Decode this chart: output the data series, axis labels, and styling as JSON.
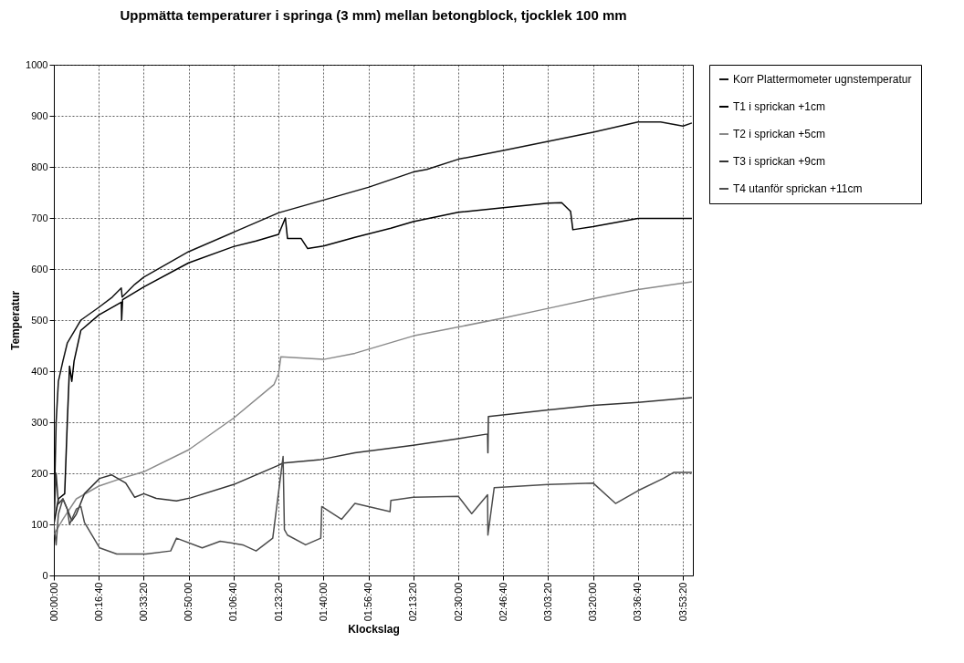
{
  "chart_data": {
    "type": "line",
    "title": "Uppmätta temperaturer i springa (3 mm) mellan betongblock, tjocklek 100 mm",
    "xlabel": "Klockslag",
    "ylabel": "Temperatur",
    "xlim": [
      0,
      3.95
    ],
    "xticks": [
      {
        "value": 0,
        "label": "00:00:00"
      },
      {
        "value": 0.2778,
        "label": "00:16:40"
      },
      {
        "value": 0.5556,
        "label": "00:33:20"
      },
      {
        "value": 0.8333,
        "label": "00:50:00"
      },
      {
        "value": 1.1111,
        "label": "01:06:40"
      },
      {
        "value": 1.3889,
        "label": "01:23:20"
      },
      {
        "value": 1.6667,
        "label": "01:40:00"
      },
      {
        "value": 1.9444,
        "label": "01:56:40"
      },
      {
        "value": 2.2222,
        "label": "02:13:20"
      },
      {
        "value": 2.5,
        "label": "02:30:00"
      },
      {
        "value": 2.7778,
        "label": "02:46:40"
      },
      {
        "value": 3.0556,
        "label": "03:03:20"
      },
      {
        "value": 3.3333,
        "label": "03:20:00"
      },
      {
        "value": 3.6111,
        "label": "03:36:40"
      },
      {
        "value": 3.8889,
        "label": "03:53:20"
      }
    ],
    "ylim": [
      0,
      1000
    ],
    "yticks": [
      0,
      100,
      200,
      300,
      400,
      500,
      600,
      700,
      800,
      900,
      1000
    ],
    "grid": true,
    "legend": "right",
    "series": [
      {
        "name": "Korr Plattermometer ugnstemperatur",
        "color": "#111111",
        "x": [
          0,
          0.014,
          0.028,
          0.056,
          0.083,
          0.139,
          0.167,
          0.278,
          0.361,
          0.417,
          0.422,
          0.5,
          0.556,
          0.833,
          1.111,
          1.389,
          1.667,
          1.944,
          2.222,
          2.306,
          2.5,
          2.778,
          3.056,
          3.333,
          3.611,
          3.75,
          3.889,
          3.944
        ],
        "values": [
          100,
          300,
          380,
          420,
          455,
          485,
          500,
          525,
          545,
          563,
          545,
          570,
          584,
          634,
          672,
          710,
          735,
          760,
          790,
          795,
          815,
          832,
          850,
          868,
          888,
          888,
          880,
          886
        ]
      },
      {
        "name": "T1 i sprickan +1cm",
        "color": "#000000",
        "x": [
          0,
          0.028,
          0.067,
          0.083,
          0.097,
          0.111,
          0.125,
          0.167,
          0.278,
          0.417,
          0.419,
          0.425,
          0.556,
          0.833,
          1.111,
          1.25,
          1.389,
          1.431,
          1.444,
          1.528,
          1.569,
          1.667,
          1.861,
          2.083,
          2.222,
          2.5,
          2.778,
          3.056,
          3.139,
          3.194,
          3.208,
          3.333,
          3.611,
          3.944
        ],
        "values": [
          100,
          150,
          160,
          300,
          410,
          380,
          420,
          480,
          510,
          535,
          500,
          540,
          565,
          612,
          644,
          655,
          668,
          700,
          660,
          660,
          640,
          645,
          662,
          680,
          693,
          711,
          720,
          729,
          730,
          713,
          677,
          683,
          699,
          699
        ]
      },
      {
        "name": "T2 i sprickan +5cm",
        "color": "#8a8a8a",
        "x": [
          0,
          0.056,
          0.139,
          0.278,
          0.417,
          0.556,
          0.833,
          1.111,
          1.361,
          1.389,
          1.403,
          1.667,
          1.861,
          2.222,
          2.778,
          3.056,
          3.333,
          3.611,
          3.944
        ],
        "values": [
          80,
          110,
          150,
          175,
          190,
          203,
          246,
          308,
          374,
          395,
          428,
          423,
          435,
          469,
          504,
          523,
          542,
          560,
          575
        ]
      },
      {
        "name": "T3 i sprickan +9cm",
        "color": "#333333",
        "x": [
          0,
          0.014,
          0.028,
          0.056,
          0.083,
          0.111,
          0.139,
          0.189,
          0.283,
          0.356,
          0.444,
          0.5,
          0.556,
          0.633,
          0.758,
          0.847,
          1.111,
          1.383,
          1.417,
          1.65,
          1.861,
          2.222,
          2.5,
          2.681,
          2.683,
          2.686,
          3.056,
          3.333,
          3.611,
          3.944
        ],
        "values": [
          100,
          200,
          140,
          150,
          130,
          107,
          120,
          160,
          190,
          197,
          181,
          153,
          160,
          151,
          146,
          152,
          178,
          215,
          220,
          227,
          240,
          255,
          268,
          277,
          240,
          311,
          324,
          333,
          339,
          348
        ]
      },
      {
        "name": "T4 utanför sprickan +11cm",
        "color": "#4d4d4d",
        "x": [
          0,
          0.014,
          0.028,
          0.056,
          0.083,
          0.097,
          0.139,
          0.167,
          0.189,
          0.283,
          0.389,
          0.569,
          0.722,
          0.758,
          0.917,
          1.028,
          1.167,
          1.25,
          1.353,
          1.417,
          1.425,
          1.444,
          1.556,
          1.65,
          1.656,
          1.778,
          1.861,
          2.078,
          2.083,
          2.222,
          2.5,
          2.583,
          2.681,
          2.683,
          2.722,
          3.056,
          3.333,
          3.472,
          3.611,
          3.767,
          3.833,
          3.944
        ],
        "values": [
          100,
          60,
          120,
          150,
          130,
          100,
          130,
          135,
          104,
          54,
          42,
          42,
          48,
          73,
          54,
          67,
          60,
          48,
          73,
          233,
          90,
          79,
          60,
          73,
          135,
          110,
          141,
          125,
          147,
          153,
          155,
          121,
          158,
          79,
          172,
          178,
          181,
          141,
          166,
          190,
          202,
          202
        ]
      }
    ]
  }
}
